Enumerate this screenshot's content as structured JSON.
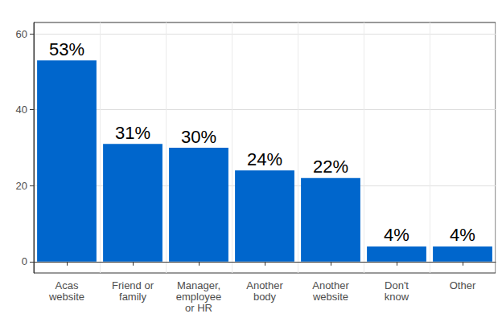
{
  "chart_data": {
    "type": "bar",
    "categories": [
      "Acas\nwebsite",
      "Friend or\nfamily",
      "Manager,\nemployee\nor HR",
      "Another\nbody",
      "Another\nwebsite",
      "Don't\nknow",
      "Other"
    ],
    "values": [
      53,
      31,
      30,
      24,
      22,
      4,
      4
    ],
    "value_labels": [
      "53%",
      "31%",
      "30%",
      "24%",
      "22%",
      "4%",
      "4%"
    ],
    "data_labels": true,
    "color": "#0066cc",
    "ylim": [
      -3,
      63
    ],
    "yticks": [
      0,
      20,
      40,
      60
    ],
    "grid": true
  }
}
